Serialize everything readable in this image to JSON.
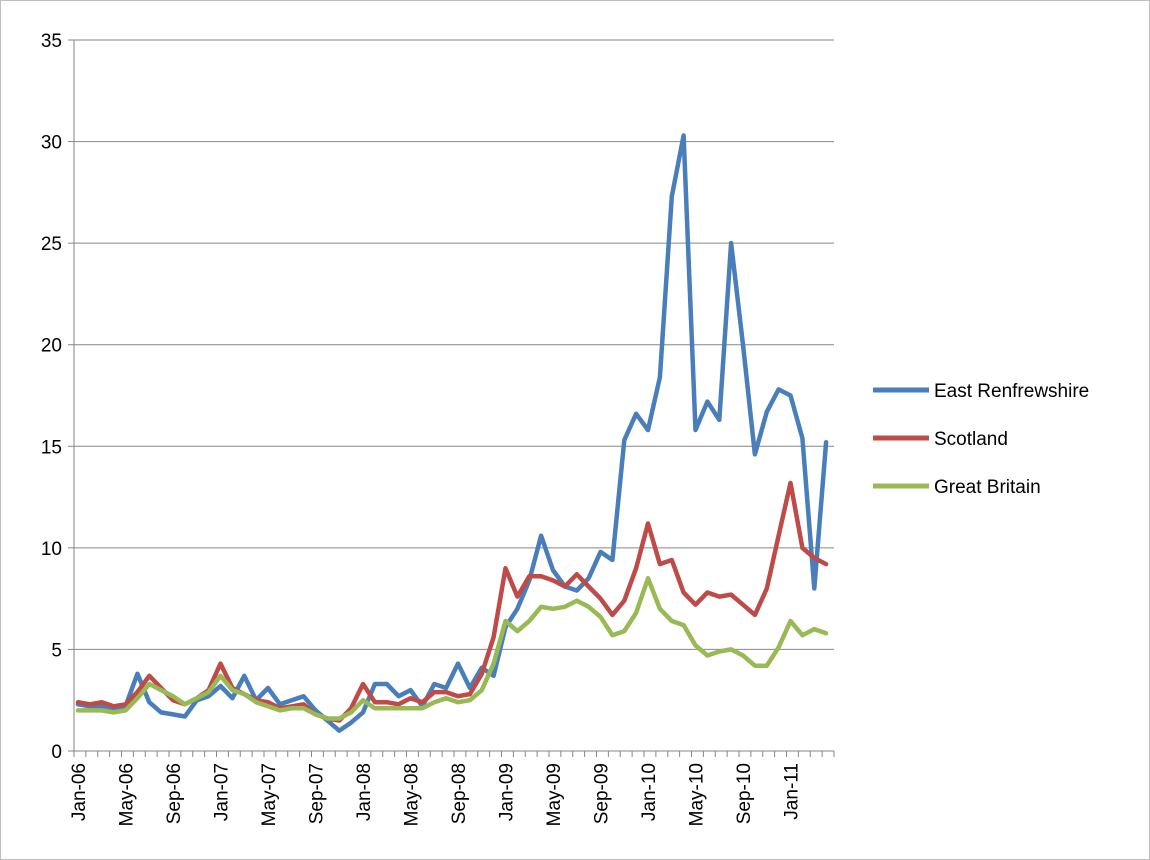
{
  "chart_data": {
    "type": "line",
    "ylim": [
      0,
      35
    ],
    "yticks": [
      0,
      5,
      10,
      15,
      20,
      25,
      30,
      35
    ],
    "grid": true,
    "legend_position": "right",
    "x": [
      "Jan-06",
      "Feb-06",
      "Mar-06",
      "Apr-06",
      "May-06",
      "Jun-06",
      "Jul-06",
      "Aug-06",
      "Sep-06",
      "Oct-06",
      "Nov-06",
      "Dec-06",
      "Jan-07",
      "Feb-07",
      "Mar-07",
      "Apr-07",
      "May-07",
      "Jun-07",
      "Jul-07",
      "Aug-07",
      "Sep-07",
      "Oct-07",
      "Nov-07",
      "Dec-07",
      "Jan-08",
      "Feb-08",
      "Mar-08",
      "Apr-08",
      "May-08",
      "Jun-08",
      "Jul-08",
      "Aug-08",
      "Sep-08",
      "Oct-08",
      "Nov-08",
      "Dec-08",
      "Jan-09",
      "Feb-09",
      "Mar-09",
      "Apr-09",
      "May-09",
      "Jun-09",
      "Jul-09",
      "Aug-09",
      "Sep-09",
      "Oct-09",
      "Nov-09",
      "Dec-09",
      "Jan-10",
      "Feb-10",
      "Mar-10",
      "Apr-10",
      "May-10",
      "Jun-10",
      "Jul-10",
      "Aug-10",
      "Sep-10",
      "Oct-10",
      "Nov-10",
      "Dec-10",
      "Jan-11",
      "Feb-11",
      "Mar-11",
      "Apr-11"
    ],
    "xtick_labels": [
      "Jan-06",
      "May-06",
      "Sep-06",
      "Jan-07",
      "May-07",
      "Sep-07",
      "Jan-08",
      "May-08",
      "Sep-08",
      "Jan-09",
      "May-09",
      "Sep-09",
      "Jan-10",
      "May-10",
      "Sep-10",
      "Jan-11"
    ],
    "series": [
      {
        "name": "East Renfrewshire",
        "color": "#4a7ebb",
        "values": [
          2.3,
          2.2,
          2.2,
          2.0,
          2.2,
          3.8,
          2.4,
          1.9,
          1.8,
          1.7,
          2.5,
          2.7,
          3.2,
          2.6,
          3.7,
          2.5,
          3.1,
          2.3,
          2.5,
          2.7,
          2.0,
          1.5,
          1.0,
          1.4,
          1.9,
          3.3,
          3.3,
          2.7,
          3.0,
          2.2,
          3.3,
          3.1,
          4.3,
          3.1,
          4.1,
          3.7,
          6.1,
          7.0,
          8.4,
          10.6,
          8.9,
          8.1,
          7.9,
          8.5,
          9.8,
          9.4,
          15.3,
          16.6,
          15.8,
          18.4,
          27.3,
          30.3,
          15.8,
          17.2,
          16.3,
          25.0,
          20.0,
          14.6,
          16.7,
          17.8,
          17.5,
          15.4,
          8.0,
          15.2
        ]
      },
      {
        "name": "Scotland",
        "color": "#be4b48",
        "values": [
          2.4,
          2.3,
          2.4,
          2.2,
          2.3,
          2.9,
          3.7,
          3.1,
          2.5,
          2.3,
          2.6,
          3.0,
          4.3,
          3.1,
          2.8,
          2.5,
          2.4,
          2.1,
          2.2,
          2.3,
          1.8,
          1.6,
          1.5,
          2.1,
          3.3,
          2.4,
          2.4,
          2.3,
          2.6,
          2.4,
          2.9,
          2.9,
          2.7,
          2.8,
          3.8,
          5.6,
          9.0,
          7.6,
          8.6,
          8.6,
          8.4,
          8.1,
          8.7,
          8.1,
          7.5,
          6.7,
          7.4,
          9.0,
          11.2,
          9.2,
          9.4,
          7.8,
          7.2,
          7.8,
          7.6,
          7.7,
          7.2,
          6.7,
          8.0,
          10.6,
          13.2,
          10.0,
          9.5,
          9.2
        ]
      },
      {
        "name": "Great Britain",
        "color": "#98b954",
        "values": [
          2.0,
          2.0,
          2.0,
          1.9,
          2.0,
          2.6,
          3.3,
          3.0,
          2.7,
          2.3,
          2.6,
          2.9,
          3.7,
          3.0,
          2.8,
          2.4,
          2.2,
          2.0,
          2.1,
          2.1,
          1.8,
          1.6,
          1.6,
          1.9,
          2.5,
          2.1,
          2.1,
          2.1,
          2.1,
          2.1,
          2.4,
          2.6,
          2.4,
          2.5,
          3.0,
          4.3,
          6.4,
          5.9,
          6.4,
          7.1,
          7.0,
          7.1,
          7.4,
          7.1,
          6.6,
          5.7,
          5.9,
          6.8,
          8.5,
          7.0,
          6.4,
          6.2,
          5.2,
          4.7,
          4.9,
          5.0,
          4.7,
          4.2,
          4.2,
          5.1,
          6.4,
          5.7,
          6.0,
          5.8
        ]
      }
    ]
  }
}
